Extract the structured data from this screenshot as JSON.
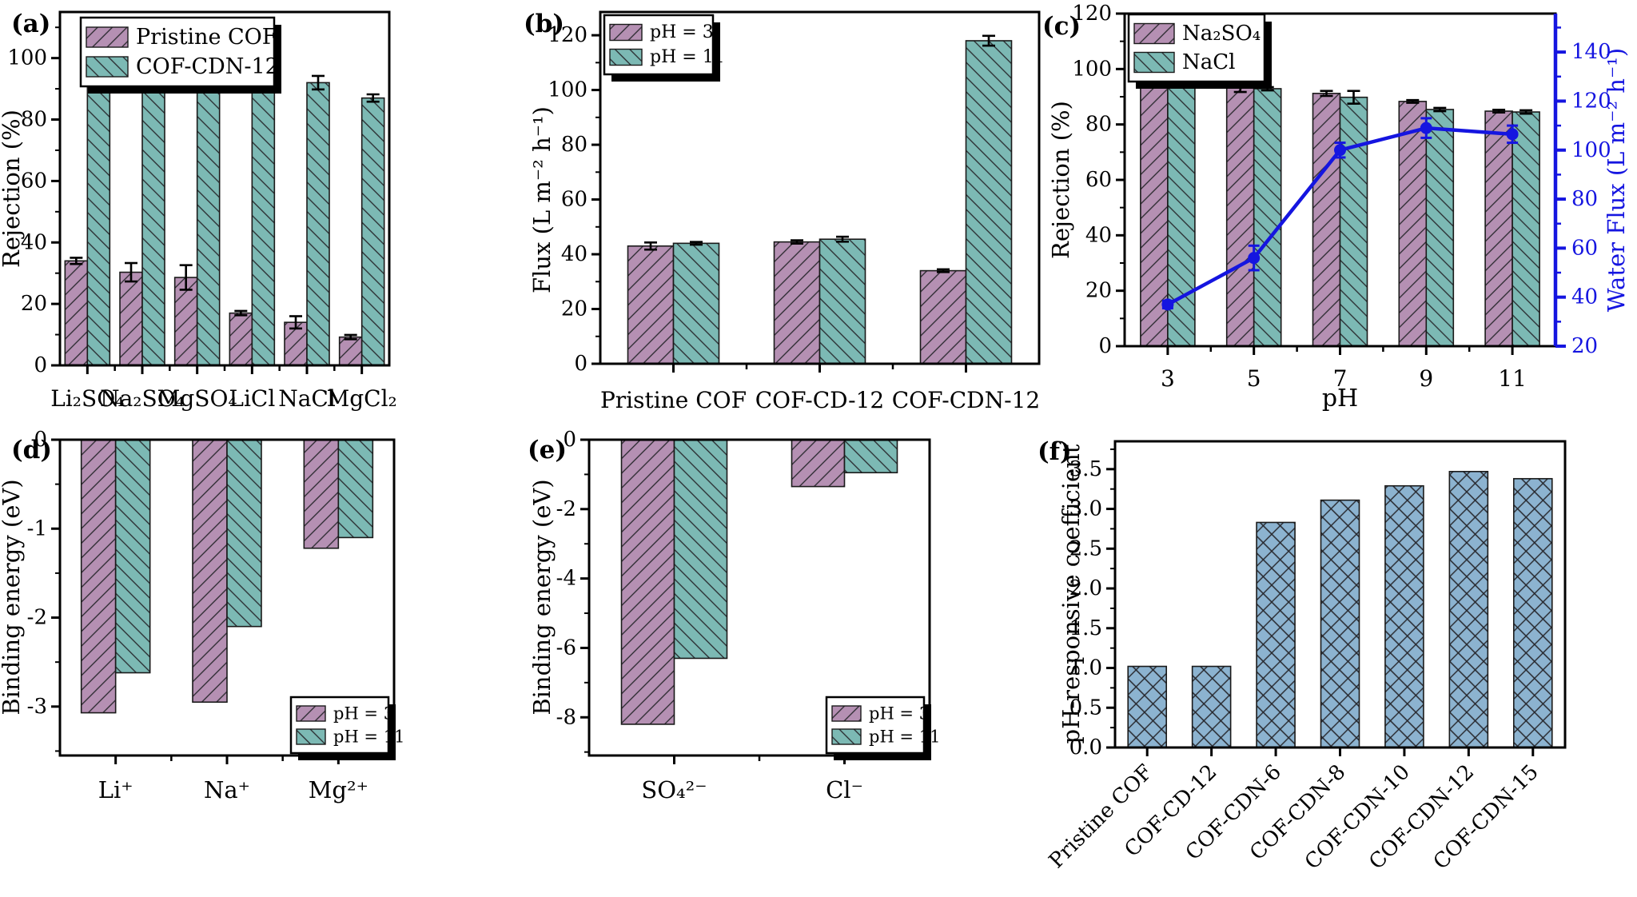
{
  "colors": {
    "purple": "#b590b3",
    "teal": "#7cb9b4",
    "steel_blue": "#8cb3d0",
    "line_blue": "#1515e0",
    "axis_black": "#000000"
  },
  "chart_data": [
    {
      "id": "a",
      "panel_label": "(a)",
      "type": "bar",
      "ylabel": "Rejection (%)",
      "ylim": [
        0,
        115
      ],
      "yticks": [
        0,
        20,
        40,
        60,
        80,
        100
      ],
      "y_minor_step": 10,
      "categories": [
        "Li₂SO₄",
        "Na₂SO₄",
        "MgSO₄",
        "LiCl",
        "NaCl",
        "MgCl₂"
      ],
      "legend_position": "top-left",
      "series": [
        {
          "name": "Pristine COF",
          "color": "#b590b3",
          "hatch": "fwd",
          "values": [
            34,
            30.3,
            28.6,
            17,
            14,
            9.2
          ],
          "errors": [
            1,
            3,
            4,
            0.7,
            2,
            0.7
          ]
        },
        {
          "name": "COF-CDN-12",
          "color": "#7cb9b4",
          "hatch": "bwd",
          "values": [
            94.5,
            93.5,
            92.5,
            93.5,
            92,
            87
          ],
          "errors": [
            0.7,
            1,
            0.5,
            1.8,
            2.2,
            1.2
          ]
        }
      ]
    },
    {
      "id": "b",
      "panel_label": "(b)",
      "type": "bar",
      "ylabel": "Flux (L m⁻² h⁻¹)",
      "ylim": [
        0,
        128.5
      ],
      "yticks": [
        0,
        20,
        40,
        60,
        80,
        100,
        120
      ],
      "y_minor_step": 10,
      "categories": [
        "Pristine COF",
        "COF-CD-12",
        "COF-CDN-12"
      ],
      "legend_position": "top-left",
      "series": [
        {
          "name": "pH = 3",
          "color": "#b590b3",
          "hatch": "fwd",
          "values": [
            43,
            44.5,
            34
          ],
          "errors": [
            1.3,
            0.6,
            0.5
          ]
        },
        {
          "name": "pH = 11",
          "color": "#7cb9b4",
          "hatch": "bwd",
          "values": [
            44,
            45.5,
            118
          ],
          "errors": [
            0.5,
            0.9,
            1.8
          ]
        }
      ]
    },
    {
      "id": "c",
      "panel_label": "(c)",
      "type": "bar+line",
      "ylabel": "Rejection (%)",
      "ylim": [
        0,
        120
      ],
      "yticks": [
        0,
        20,
        40,
        60,
        80,
        100,
        120
      ],
      "y_minor_step": 10,
      "xlabel": "pH",
      "y2label": "Water Flux (L m⁻² h⁻¹)",
      "y2lim": [
        20,
        155.7
      ],
      "y2ticks": [
        20,
        40,
        60,
        80,
        100,
        120,
        140
      ],
      "y2_minor_step": 10,
      "y2color": "#1515e0",
      "categories": [
        "3",
        "5",
        "7",
        "9",
        "11"
      ],
      "legend_position": "top-left",
      "series": [
        {
          "name": "Na₂SO₄",
          "color": "#b590b3",
          "hatch": "fwd",
          "values": [
            95.2,
            93.2,
            91.2,
            88.3,
            84.8
          ],
          "errors": [
            0.6,
            1.5,
            0.9,
            0.5,
            0.5
          ]
        },
        {
          "name": "NaCl",
          "color": "#7cb9b4",
          "hatch": "bwd",
          "values": [
            94.6,
            92.9,
            89.8,
            85.4,
            84.5
          ],
          "errors": [
            0.8,
            0.6,
            2.3,
            0.6,
            0.6
          ]
        }
      ],
      "line_series": {
        "name": "Water Flux",
        "color": "#1515e0",
        "values": [
          37,
          56,
          100,
          109,
          106.5
        ],
        "errors": [
          1.5,
          5,
          3,
          4,
          3.5
        ]
      }
    },
    {
      "id": "d",
      "panel_label": "(d)",
      "type": "bar",
      "ylabel": "Binding energy (eV)",
      "ylim": [
        -3.55,
        0
      ],
      "yticks": [
        0,
        -1,
        -2,
        -3
      ],
      "y_minor_step": 0.5,
      "categories": [
        "Li⁺",
        "Na⁺",
        "Mg²⁺"
      ],
      "legend_position": "bottom-right",
      "series": [
        {
          "name": "pH = 3",
          "color": "#b590b3",
          "hatch": "fwd",
          "values": [
            -3.07,
            -2.95,
            -1.22
          ]
        },
        {
          "name": "pH = 11",
          "color": "#7cb9b4",
          "hatch": "bwd",
          "values": [
            -2.62,
            -2.1,
            -1.1
          ]
        }
      ]
    },
    {
      "id": "e",
      "panel_label": "(e)",
      "type": "bar",
      "ylabel": "Binding energy (eV)",
      "ylim": [
        -9.1,
        0
      ],
      "yticks": [
        0,
        -2,
        -4,
        -6,
        -8
      ],
      "y_minor_step": 1,
      "categories": [
        "SO₄²⁻",
        "Cl⁻"
      ],
      "legend_position": "bottom-right",
      "series": [
        {
          "name": "pH = 3",
          "color": "#b590b3",
          "hatch": "fwd",
          "values": [
            -8.2,
            -1.35
          ]
        },
        {
          "name": "pH = 11",
          "color": "#7cb9b4",
          "hatch": "bwd",
          "values": [
            -6.3,
            -0.95
          ]
        }
      ]
    },
    {
      "id": "f",
      "panel_label": "(f)",
      "type": "bar",
      "ylabel": "pH-responsive coefficient",
      "ylim": [
        0,
        3.85
      ],
      "yticks": [
        0,
        0.5,
        1,
        1.5,
        2,
        2.5,
        3,
        3.5
      ],
      "ytick_decimals": 1,
      "y_minor_step": 0.25,
      "categories": [
        "Pristine COF",
        "COF-CD-12",
        "COF-CDN-6",
        "COF-CDN-8",
        "COF-CDN-10",
        "COF-CDN-12",
        "COF-CDN-15"
      ],
      "x_tick_rotation": -45,
      "series": [
        {
          "name": "pH-responsive coefficient",
          "color": "#8cb3d0",
          "hatch": "cross",
          "values": [
            1.02,
            1.02,
            2.83,
            3.11,
            3.29,
            3.47,
            3.38
          ]
        }
      ]
    }
  ]
}
